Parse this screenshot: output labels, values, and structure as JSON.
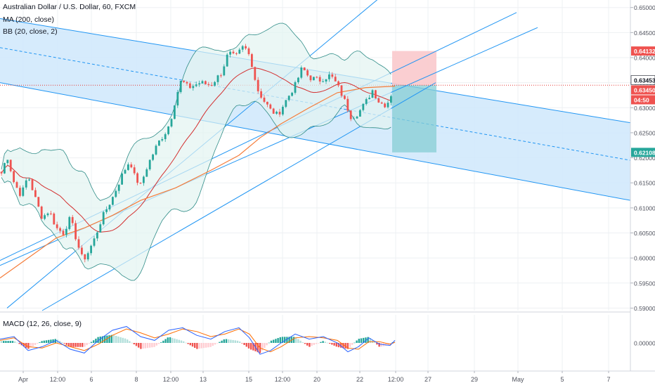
{
  "header": {
    "symbol_line": "Australian Dollar / U.S. Dollar, 60, FXCM",
    "ma_line": "MA (200, close)",
    "bb_line": "BB (20, close, 2)",
    "macd_line": "MACD (12, 26, close, 9)"
  },
  "colors": {
    "up_candle": "#26a69a",
    "down_candle": "#ef5350",
    "channel_line": "#2196f3",
    "channel_fill": "#cfe8fb",
    "ma": "#f57c3a",
    "bb_mid": "#d32f2f",
    "bb_band": "#2f8c87",
    "bb_fill": "#e3f3f1",
    "macd_line": "#2962ff",
    "signal_line": "#ff6d00",
    "long_stop_zone": "#f9c9cc",
    "long_target_zone": "#86cdd4"
  },
  "chart_data": {
    "type": "candlestick",
    "title": "Australian Dollar / U.S. Dollar, 60, FXCM",
    "indicators": [
      "MA (200, close)",
      "BB (20, close, 2)",
      "MACD (12, 26, close, 9)"
    ],
    "price_axis": {
      "ticks": [
        "0.65000",
        "0.64500",
        "0.64000",
        "0.63500",
        "0.63000",
        "0.62500",
        "0.62000",
        "0.61500",
        "0.61000",
        "0.60500",
        "0.60000",
        "0.59500",
        "0.59000"
      ],
      "ylim": [
        0.5895,
        0.6515
      ]
    },
    "macd_axis": {
      "ticks": [
        "0.00000"
      ]
    },
    "time_axis": {
      "ticks": [
        "Apr",
        "12:00",
        "6",
        "8",
        "12:00",
        "13",
        "15",
        "12:00",
        "20",
        "22",
        "12:00",
        "27",
        "29",
        "May",
        "5",
        "7"
      ]
    },
    "price_labels": [
      {
        "value": "0.64132",
        "kind": "target"
      },
      {
        "value": "0.63453",
        "kind": "last"
      },
      {
        "value": "0.63450",
        "kind": "entry"
      },
      {
        "value": "04:50",
        "kind": "countdown"
      },
      {
        "value": "0.62108",
        "kind": "stop"
      }
    ],
    "price_path": [
      [
        0,
        0.616
      ],
      [
        10,
        0.6205
      ],
      [
        20,
        0.615
      ],
      [
        30,
        0.6125
      ],
      [
        40,
        0.6165
      ],
      [
        50,
        0.612
      ],
      [
        60,
        0.608
      ],
      [
        70,
        0.6095
      ],
      [
        80,
        0.606
      ],
      [
        90,
        0.605
      ],
      [
        100,
        0.608
      ],
      [
        110,
        0.603
      ],
      [
        118,
        0.5995
      ],
      [
        125,
        0.601
      ],
      [
        135,
        0.604
      ],
      [
        145,
        0.608
      ],
      [
        160,
        0.612
      ],
      [
        175,
        0.617
      ],
      [
        185,
        0.6195
      ],
      [
        192,
        0.616
      ],
      [
        200,
        0.6145
      ],
      [
        210,
        0.6185
      ],
      [
        225,
        0.623
      ],
      [
        235,
        0.625
      ],
      [
        242,
        0.627
      ],
      [
        250,
        0.632
      ],
      [
        258,
        0.6355
      ],
      [
        268,
        0.634
      ],
      [
        285,
        0.635
      ],
      [
        300,
        0.6345
      ],
      [
        315,
        0.637
      ],
      [
        325,
        0.641
      ],
      [
        335,
        0.64
      ],
      [
        345,
        0.642
      ],
      [
        352,
        0.6415
      ],
      [
        360,
        0.638
      ],
      [
        365,
        0.634
      ],
      [
        375,
        0.6315
      ],
      [
        385,
        0.6295
      ],
      [
        395,
        0.6285
      ],
      [
        405,
        0.631
      ],
      [
        420,
        0.6345
      ],
      [
        430,
        0.638
      ],
      [
        440,
        0.636
      ],
      [
        455,
        0.6355
      ],
      [
        470,
        0.6365
      ],
      [
        480,
        0.6345
      ],
      [
        490,
        0.6315
      ],
      [
        500,
        0.628
      ],
      [
        510,
        0.629
      ],
      [
        520,
        0.631
      ],
      [
        530,
        0.6335
      ],
      [
        540,
        0.631
      ],
      [
        550,
        0.6305
      ],
      [
        562,
        0.6345
      ]
    ],
    "ma200_path": [
      [
        0,
        0.596
      ],
      [
        40,
        0.6
      ],
      [
        80,
        0.604
      ],
      [
        120,
        0.606
      ],
      [
        160,
        0.6085
      ],
      [
        200,
        0.6115
      ],
      [
        250,
        0.614
      ],
      [
        300,
        0.6175
      ],
      [
        340,
        0.6205
      ],
      [
        370,
        0.624
      ],
      [
        400,
        0.6268
      ],
      [
        440,
        0.63
      ],
      [
        480,
        0.633
      ],
      [
        520,
        0.634
      ],
      [
        562,
        0.6343
      ]
    ],
    "channel": {
      "upper": [
        [
          0,
          0.6478
        ],
        [
          897,
          0.627
        ]
      ],
      "middle": [
        [
          0,
          0.642
        ],
        [
          897,
          0.6195
        ]
      ],
      "lower": [
        [
          0,
          0.635
        ],
        [
          897,
          0.6115
        ]
      ]
    },
    "trend_lines": [
      [
        [
          10,
          0.59
        ],
        [
          545,
          0.6525
        ]
      ],
      [
        [
          0,
          0.5995
        ],
        [
          735,
          0.649
        ]
      ],
      [
        [
          0,
          0.5985
        ],
        [
          765,
          0.646
        ]
      ],
      [
        [
          60,
          0.5895
        ],
        [
          620,
          0.635
        ]
      ]
    ],
    "position": {
      "entry": 0.6345,
      "target": 0.64132,
      "stop": 0.62108
    },
    "macd": {
      "macd_path": [
        [
          0,
          0.3
        ],
        [
          20,
          0.5
        ],
        [
          40,
          -0.6
        ],
        [
          60,
          -0.3
        ],
        [
          80,
          0.2
        ],
        [
          100,
          -0.5
        ],
        [
          120,
          -0.8
        ],
        [
          140,
          0.2
        ],
        [
          160,
          1.0
        ],
        [
          180,
          1.3
        ],
        [
          200,
          0.5
        ],
        [
          220,
          0.2
        ],
        [
          240,
          1.0
        ],
        [
          260,
          1.2
        ],
        [
          280,
          0.6
        ],
        [
          300,
          0.3
        ],
        [
          320,
          0.9
        ],
        [
          340,
          1.2
        ],
        [
          355,
          0.4
        ],
        [
          370,
          -0.9
        ],
        [
          385,
          -0.6
        ],
        [
          400,
          0.0
        ],
        [
          420,
          0.7
        ],
        [
          440,
          0.3
        ],
        [
          460,
          0.5
        ],
        [
          480,
          0.0
        ],
        [
          495,
          -0.7
        ],
        [
          510,
          -0.3
        ],
        [
          525,
          0.4
        ],
        [
          540,
          -0.1
        ],
        [
          555,
          -0.2
        ],
        [
          562,
          0.2
        ]
      ],
      "signal_path": [
        [
          0,
          0.2
        ],
        [
          20,
          0.4
        ],
        [
          40,
          -0.3
        ],
        [
          60,
          -0.4
        ],
        [
          80,
          0.0
        ],
        [
          100,
          -0.3
        ],
        [
          120,
          -0.6
        ],
        [
          140,
          -0.1
        ],
        [
          160,
          0.6
        ],
        [
          180,
          1.1
        ],
        [
          200,
          0.8
        ],
        [
          220,
          0.4
        ],
        [
          240,
          0.7
        ],
        [
          260,
          1.1
        ],
        [
          280,
          0.9
        ],
        [
          300,
          0.5
        ],
        [
          320,
          0.7
        ],
        [
          340,
          1.1
        ],
        [
          355,
          0.7
        ],
        [
          370,
          -0.4
        ],
        [
          385,
          -0.7
        ],
        [
          400,
          -0.3
        ],
        [
          420,
          0.4
        ],
        [
          440,
          0.5
        ],
        [
          460,
          0.4
        ],
        [
          480,
          0.2
        ],
        [
          495,
          -0.4
        ],
        [
          510,
          -0.5
        ],
        [
          525,
          0.1
        ],
        [
          540,
          0.1
        ],
        [
          555,
          -0.1
        ],
        [
          562,
          0.05
        ]
      ]
    }
  }
}
